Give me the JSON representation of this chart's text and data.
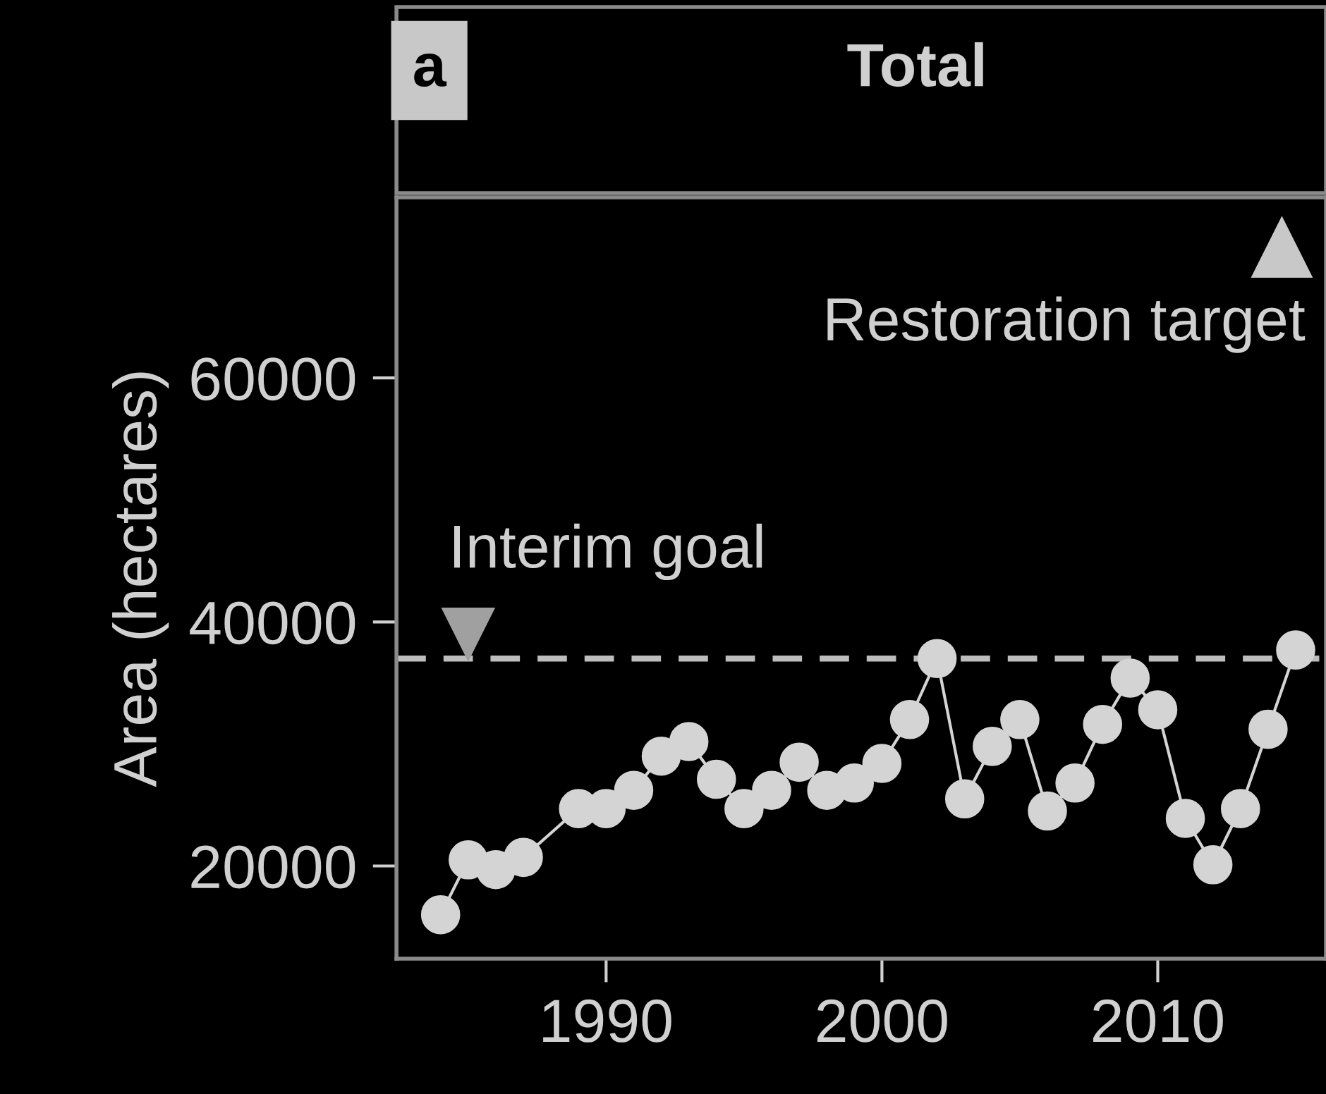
{
  "chart_data": {
    "type": "line",
    "title": "Total",
    "ylabel": "Area (hectares)",
    "annotations": [
      "a",
      {
        "text": "Interim goal",
        "x": 1985,
        "y": 37000
      },
      {
        "text": "Restoration target",
        "x": 2014.5,
        "y": 70700
      }
    ],
    "x": [
      1984,
      1985,
      1986,
      1987,
      1989,
      1990,
      1991,
      1992,
      1993,
      1994,
      1995,
      1996,
      1997,
      1998,
      1999,
      2000,
      2001,
      2002,
      2003,
      2004,
      2005,
      2006,
      2007,
      2008,
      2009,
      2010,
      2011,
      2012,
      2013,
      2014,
      2015
    ],
    "series": [
      {
        "color": "#d4d4d4",
        "values": [
          16000,
          20500,
          19700,
          20700,
          24700,
          24700,
          26200,
          29000,
          30200,
          27100,
          24700,
          26200,
          28500,
          26200,
          26800,
          28400,
          32000,
          37000,
          25500,
          29800,
          32000,
          24500,
          26800,
          31600,
          35400,
          32800,
          23900,
          20100,
          24700,
          31200,
          37700
        ]
      }
    ],
    "ref_lines": [
      {
        "axis": "y",
        "value": 37000,
        "color": "#bdbdbd",
        "line_style": "dashed"
      }
    ],
    "xlim": [
      1982.4,
      2016.1
    ],
    "ylim": [
      12400,
      74800
    ],
    "xticks": [
      1990,
      2000,
      2010
    ],
    "yticks": [
      20000,
      40000,
      60000
    ],
    "grid": false,
    "legend": false,
    "marker": "circle",
    "line_style": "solid"
  }
}
